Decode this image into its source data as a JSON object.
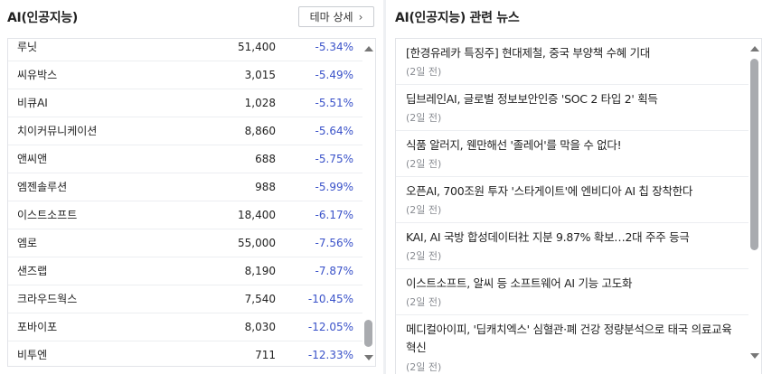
{
  "left": {
    "title": "AI(인공지능)",
    "theme_button": "테마 상세",
    "rows": [
      {
        "name": "루닛",
        "price": "51,400",
        "rate": "-5.34%"
      },
      {
        "name": "씨유박스",
        "price": "3,015",
        "rate": "-5.49%"
      },
      {
        "name": "비큐AI",
        "price": "1,028",
        "rate": "-5.51%"
      },
      {
        "name": "치이커뮤니케이션",
        "price": "8,860",
        "rate": "-5.64%"
      },
      {
        "name": "앤씨앤",
        "price": "688",
        "rate": "-5.75%"
      },
      {
        "name": "엠젠솔루션",
        "price": "988",
        "rate": "-5.99%"
      },
      {
        "name": "이스트소프트",
        "price": "18,400",
        "rate": "-6.17%"
      },
      {
        "name": "엠로",
        "price": "55,000",
        "rate": "-7.56%"
      },
      {
        "name": "샌즈랩",
        "price": "8,190",
        "rate": "-7.87%"
      },
      {
        "name": "크라우드웍스",
        "price": "7,540",
        "rate": "-10.45%"
      },
      {
        "name": "포바이포",
        "price": "8,030",
        "rate": "-12.05%"
      },
      {
        "name": "비투엔",
        "price": "711",
        "rate": "-12.33%"
      }
    ]
  },
  "right": {
    "title": "AI(인공지능) 관련 뉴스",
    "news": [
      {
        "title": "[한경유레카 특징주] 현대제철, 중국 부양책 수혜 기대",
        "ago": "(2일 전)"
      },
      {
        "title": "딥브레인AI, 글로벌 정보보안인증 'SOC 2 타입 2' 획득",
        "ago": "(2일 전)"
      },
      {
        "title": "식품 알러지, 웬만해선 '졸레어'를 막을 수 없다!",
        "ago": "(2일 전)"
      },
      {
        "title": "오픈AI, 700조원 투자 '스타게이트'에 엔비디아 AI 칩 장착한다",
        "ago": "(2일 전)"
      },
      {
        "title": "KAI, AI 국방 합성데이터社 지분 9.87% 확보…2대 주주 등극",
        "ago": "(2일 전)"
      },
      {
        "title": "이스트소프트, 알씨 등 소프트웨어 AI 기능 고도화",
        "ago": "(2일 전)"
      },
      {
        "title": "메디컬아이피, '딥캐치엑스' 심혈관·폐 건강 정량분석으로 태국 의료교육",
        "title2": "혁신",
        "ago": "(2일 전)"
      }
    ]
  },
  "icons": {
    "chevron": "chevron-right-icon",
    "up": "scroll-up-arrow-icon",
    "down": "scroll-down-arrow-icon"
  },
  "colors": {
    "negative_rate": "#3a52c9",
    "scroll_thumb": "#a9abaf"
  }
}
